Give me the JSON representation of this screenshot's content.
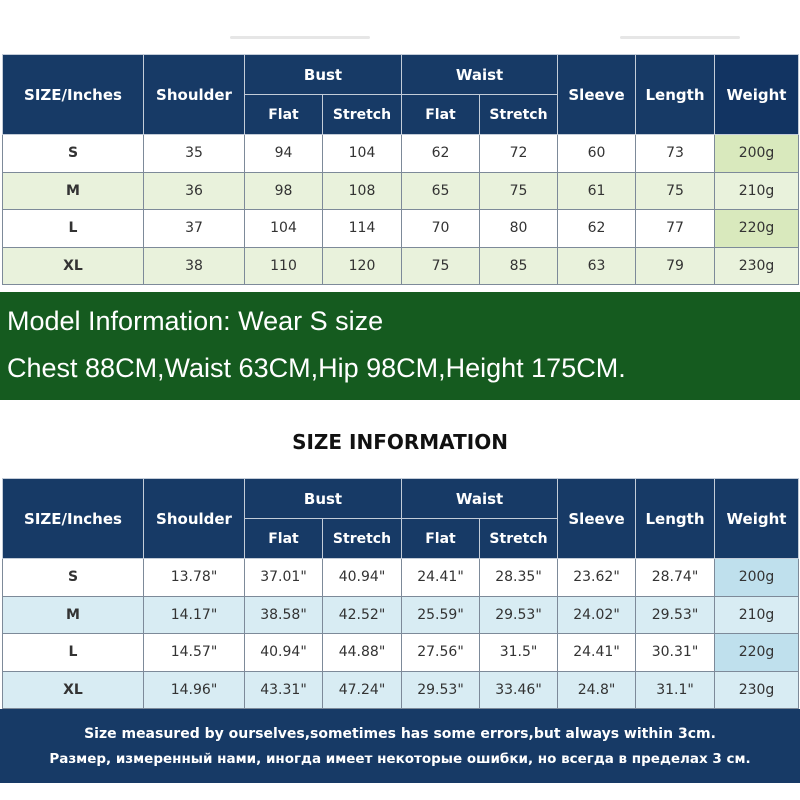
{
  "headers": {
    "size": "SIZE/Inches",
    "shoulder": "Shoulder",
    "bust": "Bust",
    "waist": "Waist",
    "sleeve": "Sleeve",
    "length": "Length",
    "weight": "Weight",
    "flat": "Flat",
    "stretch": "Stretch"
  },
  "table_cm": {
    "rows": [
      {
        "size": "S",
        "shoulder": "35",
        "bust_flat": "94",
        "bust_stretch": "104",
        "waist_flat": "62",
        "waist_stretch": "72",
        "sleeve": "60",
        "length": "73",
        "weight": "200g"
      },
      {
        "size": "M",
        "shoulder": "36",
        "bust_flat": "98",
        "bust_stretch": "108",
        "waist_flat": "65",
        "waist_stretch": "75",
        "sleeve": "61",
        "length": "75",
        "weight": "210g"
      },
      {
        "size": "L",
        "shoulder": "37",
        "bust_flat": "104",
        "bust_stretch": "114",
        "waist_flat": "70",
        "waist_stretch": "80",
        "sleeve": "62",
        "length": "77",
        "weight": "220g"
      },
      {
        "size": "XL",
        "shoulder": "38",
        "bust_flat": "110",
        "bust_stretch": "120",
        "waist_flat": "75",
        "waist_stretch": "85",
        "sleeve": "63",
        "length": "79",
        "weight": "230g"
      }
    ]
  },
  "model_info": {
    "line1": "Model Information: Wear S size",
    "line2": "Chest 88CM,Waist 63CM,Hip 98CM,Height 175CM."
  },
  "section_title": "SIZE INFORMATION",
  "table_inches": {
    "rows": [
      {
        "size": "S",
        "shoulder": "13.78\"",
        "bust_flat": "37.01\"",
        "bust_stretch": "40.94\"",
        "waist_flat": "24.41\"",
        "waist_stretch": "28.35\"",
        "sleeve": "23.62\"",
        "length": "28.74\"",
        "weight": "200g"
      },
      {
        "size": "M",
        "shoulder": "14.17\"",
        "bust_flat": "38.58\"",
        "bust_stretch": "42.52\"",
        "waist_flat": "25.59\"",
        "waist_stretch": "29.53\"",
        "sleeve": "24.02\"",
        "length": "29.53\"",
        "weight": "210g"
      },
      {
        "size": "L",
        "shoulder": "14.57\"",
        "bust_flat": "40.94\"",
        "bust_stretch": "44.88\"",
        "waist_flat": "27.56\"",
        "waist_stretch": "31.5\"",
        "sleeve": "24.41\"",
        "length": "30.31\"",
        "weight": "220g"
      },
      {
        "size": "XL",
        "shoulder": "14.96\"",
        "bust_flat": "43.31\"",
        "bust_stretch": "47.24\"",
        "waist_flat": "29.53\"",
        "waist_stretch": "33.46\"",
        "sleeve": "24.8\"",
        "length": "31.1\"",
        "weight": "230g"
      }
    ]
  },
  "note": {
    "english": "Size measured by ourselves,sometimes has some errors,but always within 3cm.",
    "russian": "Размер, измеренный нами, иногда имеет некоторые ошибки, но всегда в пределах 3 см."
  },
  "colors": {
    "header_navy": "#173a66",
    "model_banner_green": "#155b1f",
    "cm_alt_row": "#e9f2dc",
    "inch_alt_row": "#d8ecf3"
  }
}
